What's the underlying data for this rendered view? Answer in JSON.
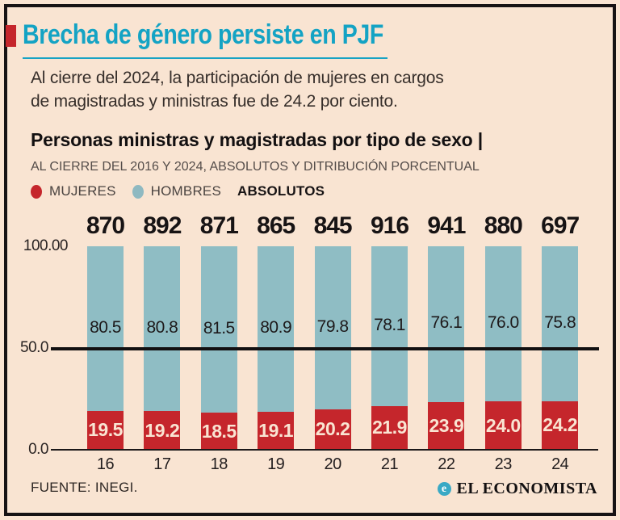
{
  "page": {
    "background": "#f9e4d2",
    "frame_color": "#161314"
  },
  "header": {
    "title": "Brecha de género persiste en PJF",
    "title_color": "#14a3c4",
    "accent_color": "#c5262c",
    "intro_lines": [
      "Al cierre del 2024, la participación de mujeres en cargos",
      "de magistradas y ministras fue de 24.2 por ciento."
    ]
  },
  "chart": {
    "title": "Personas ministras y magistradas por tipo de sexo |",
    "subtitle": "AL CIERRE DEL 2016 Y 2024, ABSOLUTOS Y DITRIBUCIÓN PORCENTUAL",
    "legend": {
      "items": [
        {
          "label": "MUJERES",
          "color": "#c5262c"
        },
        {
          "label": "HOMBRES",
          "color": "#8fb9c1"
        }
      ],
      "extra_label": "ABSOLUTOS"
    }
  },
  "chart_data": {
    "type": "bar",
    "stacked": true,
    "unit": "percent",
    "categories": [
      "16",
      "17",
      "18",
      "19",
      "20",
      "21",
      "22",
      "23",
      "24"
    ],
    "series": [
      {
        "name": "MUJERES",
        "color": "#c5262c",
        "values": [
          19.5,
          19.2,
          18.5,
          19.1,
          20.2,
          21.9,
          23.9,
          24.0,
          24.2
        ],
        "labels": [
          "19.5",
          "19.2",
          "18.5",
          "19.1",
          "20.2",
          "21.9",
          "23.9",
          "24.0",
          "24.2"
        ]
      },
      {
        "name": "HOMBRES",
        "color": "#8fbdc4",
        "values": [
          80.5,
          80.8,
          81.5,
          80.9,
          79.8,
          78.1,
          76.1,
          76.0,
          75.8
        ],
        "labels": [
          "80.5",
          "80.8",
          "81.5",
          "80.9",
          "79.8",
          "78.1",
          "76.1",
          "76.0",
          "75.8"
        ]
      }
    ],
    "absolutos": [
      870,
      892,
      871,
      865,
      845,
      916,
      941,
      880,
      697
    ],
    "yticks": [
      "100.00",
      "50.0",
      "0.0"
    ],
    "ylim": [
      0,
      100
    ],
    "reference_line_at": 50,
    "legend_position": "top-left"
  },
  "footer": {
    "source": "FUENTE: INEGI.",
    "brand": "EL ECONOMISTA",
    "brand_icon": "el-economista-e-icon",
    "brand_icon_glyph": "e"
  }
}
